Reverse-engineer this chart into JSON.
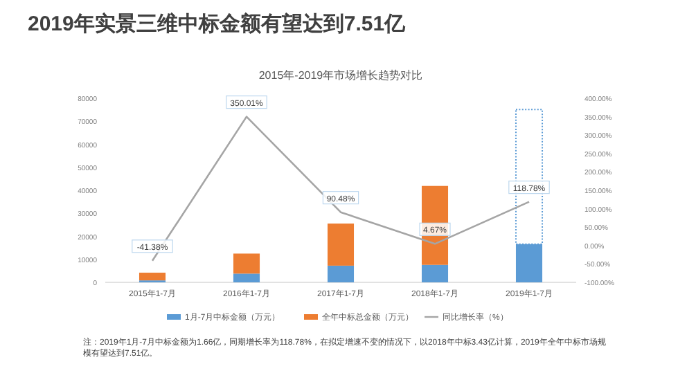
{
  "chart_data": {
    "type": "bar",
    "title": "2019年实景三维中标金额有望达到7.51亿",
    "subtitle": "2015年-2019年市场增长趋势对比",
    "categories": [
      "2015年1-7月",
      "2016年1-7月",
      "2017年1-7月",
      "2018年1-7月",
      "2019年1-7月"
    ],
    "stacked": true,
    "series": [
      {
        "name": "1月-7月中标金额（万元）",
        "color": "#5b9bd5",
        "values": [
          850,
          3800,
          7250,
          7600,
          16600
        ]
      },
      {
        "name": "全年中标总金额（万元）",
        "color": "#ed7d31",
        "values": [
          3350,
          8700,
          18300,
          34300,
          null
        ]
      },
      {
        "type": "bar",
        "line_style": "dotted",
        "color": "#5b9bd5",
        "values": [
          null,
          null,
          null,
          null,
          58500
        ]
      },
      {
        "type": "line",
        "axis": "y2",
        "name": "同比增长率（%）",
        "color": "#a5a5a5",
        "values": [
          -41.38,
          350.01,
          90.48,
          4.67,
          118.78
        ],
        "value_labels": [
          "-41.38%",
          "350.01%",
          "90.48%",
          "4.67%",
          "118.78%"
        ]
      }
    ],
    "ylim": [
      0,
      80000
    ],
    "yticks": [
      0,
      10000,
      20000,
      30000,
      40000,
      50000,
      60000,
      70000,
      80000
    ],
    "y2lim": [
      -100,
      400
    ],
    "y2ticks": [
      {
        "value": -100,
        "label": "-100.00%"
      },
      {
        "value": -50,
        "label": "-50.00%"
      },
      {
        "value": 0,
        "label": "0.00%"
      },
      {
        "value": 50,
        "label": "50.00%"
      },
      {
        "value": 100,
        "label": "100.00%"
      },
      {
        "value": 150,
        "label": "150.00%"
      },
      {
        "value": 200,
        "label": "200.00%"
      },
      {
        "value": 250,
        "label": "250.00%"
      },
      {
        "value": 300,
        "label": "300.00%"
      },
      {
        "value": 350,
        "label": "350.00%"
      },
      {
        "value": 400,
        "label": "400.00%"
      }
    ],
    "grid": false,
    "legend": "bottom",
    "annotations": [
      "注：2019年1月-7月中标金额为1.66亿，同期增长率为118.78%，在拟定增速不变的情况下，以2018年中标3.43亿计算，2019年全年中标市场规模有望达到7.51亿。"
    ]
  }
}
